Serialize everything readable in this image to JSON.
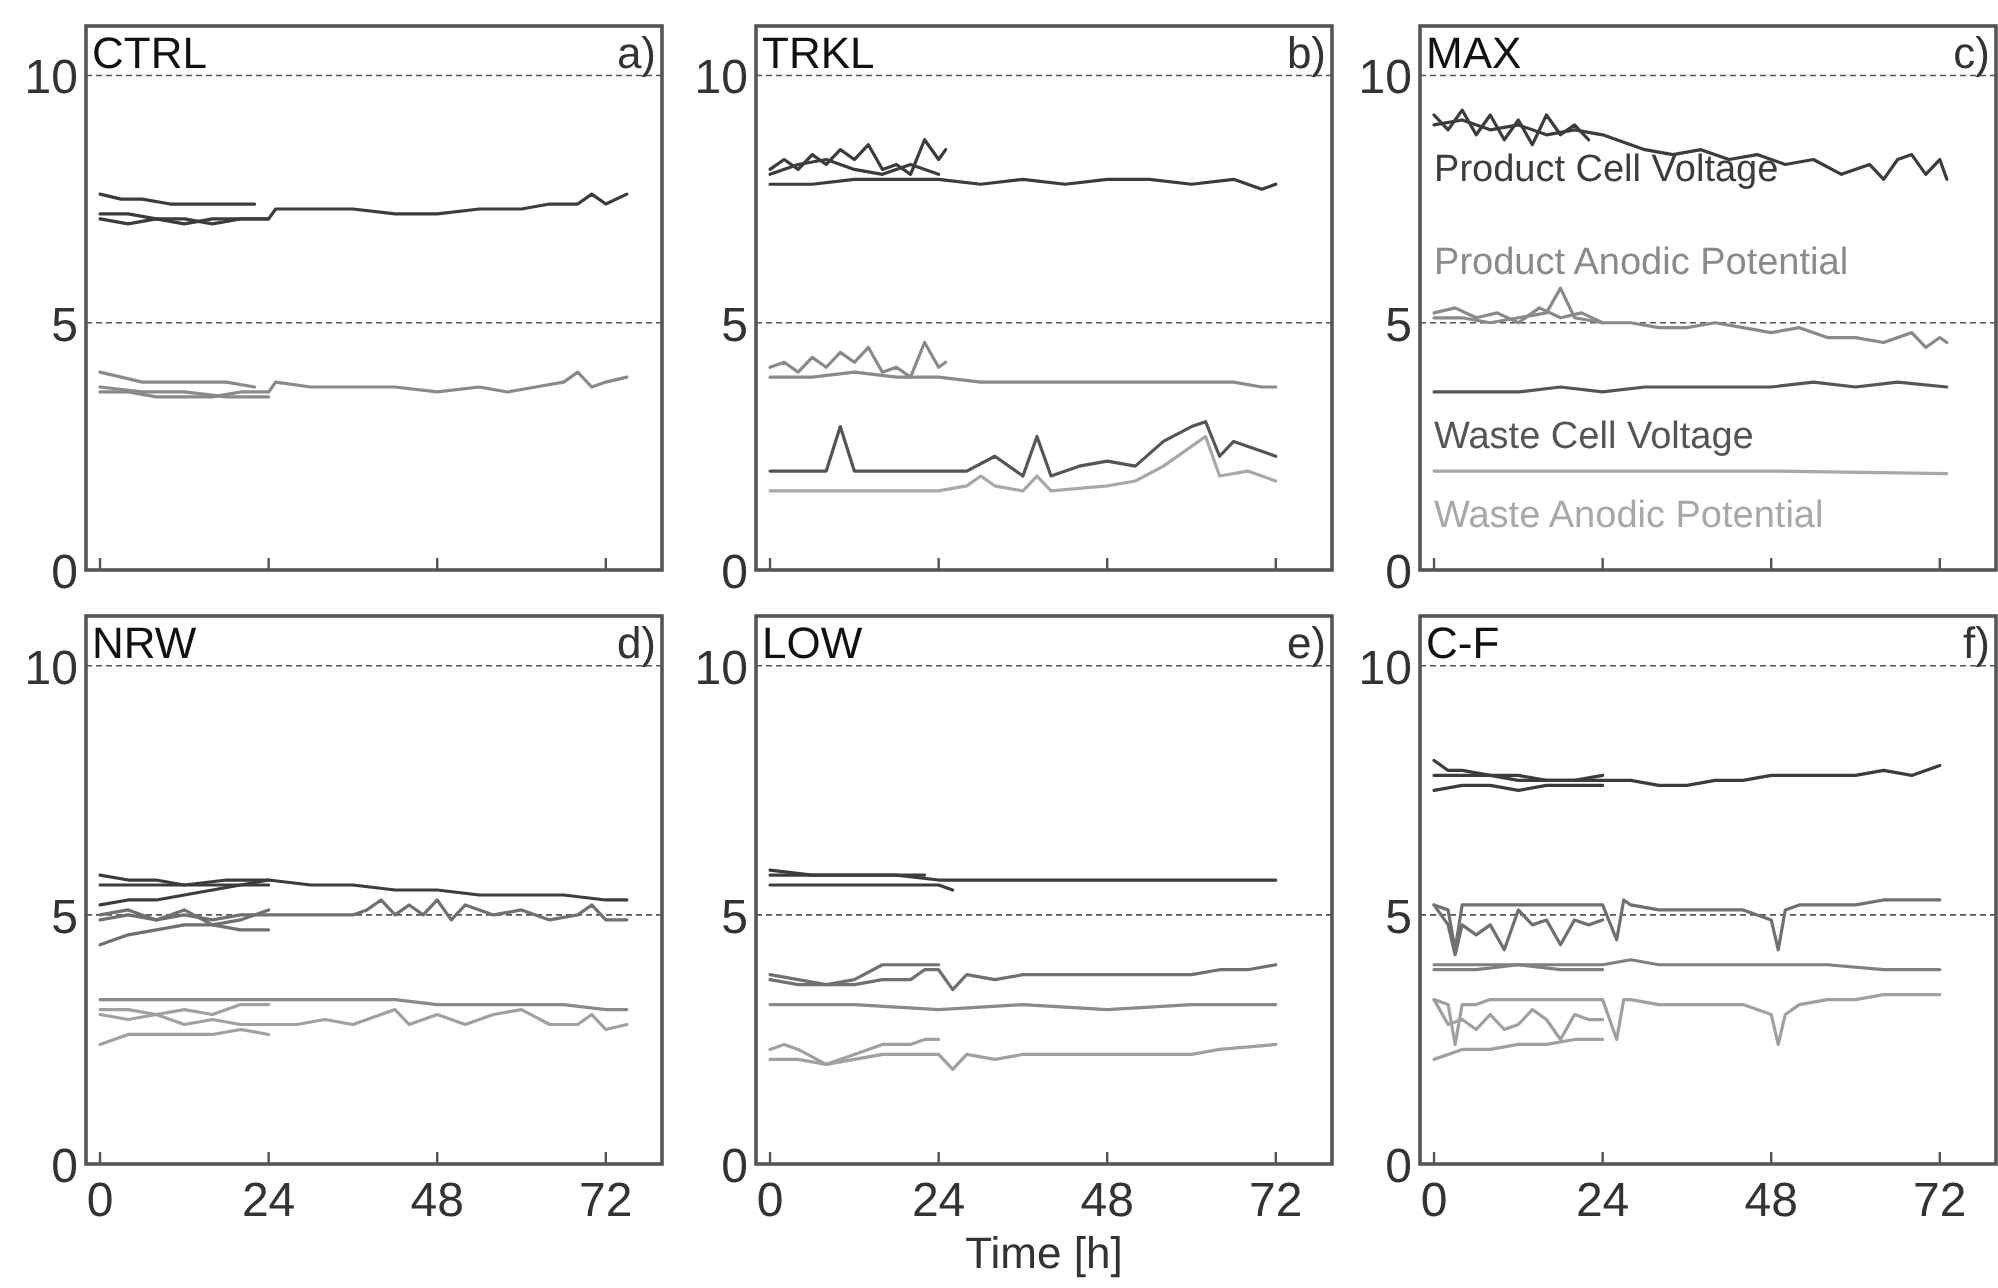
{
  "chart_data": [
    {
      "type": "line",
      "title": "CTRL",
      "annotations": [
        "a)"
      ],
      "xlim": [
        -2,
        80
      ],
      "xticks": [
        0,
        24,
        48,
        72
      ],
      "ylim": [
        0,
        11
      ],
      "yticks": [
        0,
        5,
        10
      ],
      "grid": "y",
      "tick_labels": "y",
      "series": [
        {
          "color": "#3c3c3c",
          "x": [
            0,
            4,
            8,
            12,
            16,
            20,
            24,
            25,
            30,
            36,
            42,
            48,
            54,
            60,
            64,
            68,
            70,
            72,
            75
          ],
          "values": [
            7.1,
            7.0,
            7.1,
            7.0,
            7.1,
            7.1,
            7.1,
            7.3,
            7.3,
            7.3,
            7.2,
            7.2,
            7.3,
            7.3,
            7.4,
            7.4,
            7.6,
            7.4,
            7.6
          ]
        },
        {
          "color": "#3c3c3c",
          "x": [
            0,
            3,
            6,
            10,
            14,
            18,
            22
          ],
          "values": [
            7.6,
            7.5,
            7.5,
            7.4,
            7.4,
            7.4,
            7.4
          ]
        },
        {
          "color": "#3c3c3c",
          "x": [
            0,
            4,
            8,
            12,
            16,
            20,
            24
          ],
          "values": [
            7.2,
            7.2,
            7.1,
            7.1,
            7.0,
            7.1,
            7.1
          ]
        },
        {
          "color": "#8a8a8a",
          "x": [
            0,
            4,
            8,
            12,
            16,
            20,
            24,
            25,
            30,
            36,
            42,
            48,
            54,
            58,
            62,
            66,
            68,
            70,
            72,
            75
          ],
          "values": [
            3.6,
            3.6,
            3.5,
            3.5,
            3.5,
            3.6,
            3.6,
            3.8,
            3.7,
            3.7,
            3.7,
            3.6,
            3.7,
            3.6,
            3.7,
            3.8,
            4.0,
            3.7,
            3.8,
            3.9
          ]
        },
        {
          "color": "#8a8a8a",
          "x": [
            0,
            3,
            6,
            10,
            14,
            18,
            22
          ],
          "values": [
            4.0,
            3.9,
            3.8,
            3.8,
            3.8,
            3.8,
            3.7
          ]
        },
        {
          "color": "#8a8a8a",
          "x": [
            0,
            6,
            12,
            18,
            24
          ],
          "values": [
            3.7,
            3.6,
            3.6,
            3.5,
            3.5
          ]
        }
      ]
    },
    {
      "type": "line",
      "title": "TRKL",
      "annotations": [
        "b)"
      ],
      "xlim": [
        -2,
        80
      ],
      "xticks": [
        0,
        24,
        48,
        72
      ],
      "ylim": [
        0,
        11
      ],
      "yticks": [
        0,
        5,
        10
      ],
      "grid": "y",
      "tick_labels": "y",
      "series": [
        {
          "color": "#3c3c3c",
          "x": [
            0,
            6,
            12,
            18,
            24,
            30,
            36,
            42,
            48,
            54,
            60,
            66,
            70,
            72
          ],
          "values": [
            7.8,
            7.8,
            7.9,
            7.9,
            7.9,
            7.8,
            7.9,
            7.8,
            7.9,
            7.9,
            7.8,
            7.9,
            7.7,
            7.8
          ]
        },
        {
          "color": "#3c3c3c",
          "x": [
            0,
            2,
            4,
            6,
            8,
            10,
            12,
            14,
            16,
            18,
            20,
            22,
            24,
            25
          ],
          "values": [
            8.1,
            8.3,
            8.1,
            8.4,
            8.2,
            8.5,
            8.3,
            8.6,
            8.1,
            8.2,
            8.0,
            8.7,
            8.3,
            8.5
          ]
        },
        {
          "color": "#3c3c3c",
          "x": [
            0,
            4,
            8,
            12,
            16,
            20,
            24
          ],
          "values": [
            8.0,
            8.2,
            8.3,
            8.1,
            8.0,
            8.2,
            8.0
          ]
        },
        {
          "color": "#8a8a8a",
          "x": [
            0,
            6,
            12,
            18,
            24,
            30,
            36,
            42,
            48,
            54,
            60,
            66,
            70,
            72
          ],
          "values": [
            3.9,
            3.9,
            4.0,
            3.9,
            3.9,
            3.8,
            3.8,
            3.8,
            3.8,
            3.8,
            3.8,
            3.8,
            3.7,
            3.7
          ]
        },
        {
          "color": "#8a8a8a",
          "x": [
            0,
            2,
            4,
            6,
            8,
            10,
            12,
            14,
            16,
            18,
            20,
            22,
            24,
            25
          ],
          "values": [
            4.1,
            4.2,
            4.0,
            4.3,
            4.1,
            4.4,
            4.2,
            4.5,
            4.0,
            4.1,
            3.9,
            4.6,
            4.1,
            4.2
          ]
        },
        {
          "color": "#555555",
          "x": [
            0,
            2,
            4,
            8,
            10,
            12,
            16,
            20,
            24,
            28,
            32,
            36,
            38,
            40,
            44,
            48,
            52,
            56,
            60,
            62,
            64,
            66,
            70,
            72
          ],
          "values": [
            2.0,
            2.0,
            2.0,
            2.0,
            2.9,
            2.0,
            2.0,
            2.0,
            2.0,
            2.0,
            2.3,
            1.9,
            2.7,
            1.9,
            2.1,
            2.2,
            2.1,
            2.6,
            2.9,
            3.0,
            2.3,
            2.6,
            2.4,
            2.3
          ]
        },
        {
          "color": "#a8a8a8",
          "x": [
            0,
            4,
            8,
            12,
            16,
            20,
            24,
            28,
            30,
            32,
            36,
            38,
            40,
            48,
            52,
            56,
            60,
            62,
            64,
            68,
            72
          ],
          "values": [
            1.6,
            1.6,
            1.6,
            1.6,
            1.6,
            1.6,
            1.6,
            1.7,
            1.9,
            1.7,
            1.6,
            1.9,
            1.6,
            1.7,
            1.8,
            2.1,
            2.5,
            2.7,
            1.9,
            2.0,
            1.8
          ]
        }
      ]
    },
    {
      "type": "line",
      "title": "MAX",
      "annotations": [
        "c)"
      ],
      "xlim": [
        -2,
        80
      ],
      "xticks": [
        0,
        24,
        48,
        72
      ],
      "ylim": [
        0,
        11
      ],
      "yticks": [
        0,
        5,
        10
      ],
      "grid": "y",
      "tick_labels": "y",
      "series": [
        {
          "name": "Product Cell Voltage",
          "color": "#3c3c3c",
          "x": [
            0,
            4,
            8,
            12,
            16,
            20,
            24,
            26,
            30,
            34,
            38,
            42,
            46,
            50,
            54,
            58,
            62,
            64,
            66,
            68,
            70,
            72,
            73
          ],
          "values": [
            9.0,
            9.1,
            8.9,
            9.0,
            8.8,
            8.9,
            8.8,
            8.7,
            8.5,
            8.4,
            8.5,
            8.3,
            8.4,
            8.2,
            8.3,
            8.0,
            8.2,
            7.9,
            8.3,
            8.4,
            8.0,
            8.3,
            7.9
          ]
        },
        {
          "name": "Product Anodic Potential",
          "color": "#8a8a8a",
          "x": [
            0,
            4,
            8,
            12,
            16,
            18,
            20,
            24,
            28,
            32,
            36,
            40,
            44,
            48,
            52,
            56,
            60,
            64,
            68,
            70,
            72,
            73
          ],
          "values": [
            5.1,
            5.1,
            5.0,
            5.1,
            5.2,
            5.7,
            5.1,
            5.0,
            5.0,
            4.9,
            4.9,
            5.0,
            4.9,
            4.8,
            4.9,
            4.7,
            4.7,
            4.6,
            4.8,
            4.5,
            4.7,
            4.6
          ]
        },
        {
          "name": "Waste Cell Voltage",
          "color": "#555555",
          "x": [
            0,
            6,
            12,
            18,
            24,
            30,
            36,
            42,
            48,
            54,
            60,
            66,
            73
          ],
          "values": [
            3.6,
            3.6,
            3.6,
            3.7,
            3.6,
            3.7,
            3.7,
            3.7,
            3.7,
            3.8,
            3.7,
            3.8,
            3.7
          ]
        },
        {
          "name": "Waste Anodic Potential",
          "color": "#a8a8a8",
          "x": [
            0,
            24,
            48,
            73
          ],
          "values": [
            2.0,
            2.0,
            2.0,
            1.95
          ]
        },
        {
          "color": "#3c3c3c",
          "x": [
            0,
            2,
            4,
            6,
            8,
            10,
            12,
            14,
            16,
            18,
            20,
            22
          ],
          "values": [
            9.2,
            8.9,
            9.3,
            8.8,
            9.2,
            8.7,
            9.1,
            8.6,
            9.2,
            8.8,
            9.0,
            8.7
          ]
        },
        {
          "color": "#8a8a8a",
          "x": [
            0,
            3,
            6,
            9,
            12,
            15,
            18,
            21,
            24
          ],
          "values": [
            5.2,
            5.3,
            5.1,
            5.2,
            5.0,
            5.3,
            5.1,
            5.2,
            5.0
          ]
        }
      ]
    },
    {
      "type": "line",
      "title": "NRW",
      "annotations": [
        "d)"
      ],
      "xlim": [
        -2,
        80
      ],
      "xticks": [
        0,
        24,
        48,
        72
      ],
      "ylim": [
        0,
        11
      ],
      "yticks": [
        0,
        5,
        10
      ],
      "grid": "y",
      "series": [
        {
          "color": "#3c3c3c",
          "x": [
            0,
            6,
            12,
            18,
            24,
            30,
            36,
            42,
            48,
            54,
            60,
            66,
            72,
            75
          ],
          "values": [
            5.6,
            5.6,
            5.6,
            5.7,
            5.7,
            5.6,
            5.6,
            5.5,
            5.5,
            5.4,
            5.4,
            5.4,
            5.3,
            5.3
          ]
        },
        {
          "color": "#3c3c3c",
          "x": [
            0,
            4,
            8,
            12,
            16,
            20,
            24
          ],
          "values": [
            5.8,
            5.7,
            5.7,
            5.6,
            5.6,
            5.6,
            5.7
          ]
        },
        {
          "color": "#3c3c3c",
          "x": [
            0,
            4,
            8,
            12,
            16,
            20,
            24
          ],
          "values": [
            5.2,
            5.3,
            5.3,
            5.4,
            5.5,
            5.6,
            5.6
          ]
        },
        {
          "color": "#707070",
          "x": [
            0,
            4,
            8,
            12,
            16,
            20,
            24,
            28,
            32,
            36,
            38,
            40,
            42,
            44,
            46,
            48,
            50,
            52,
            56,
            60,
            64,
            68,
            70,
            72,
            75
          ],
          "values": [
            4.9,
            5.0,
            4.9,
            5.0,
            4.9,
            5.0,
            5.0,
            5.0,
            5.0,
            5.0,
            5.1,
            5.3,
            5.0,
            5.2,
            5.0,
            5.3,
            4.9,
            5.2,
            5.0,
            5.1,
            4.9,
            5.0,
            5.2,
            4.9,
            4.9
          ]
        },
        {
          "color": "#707070",
          "x": [
            0,
            4,
            8,
            12,
            16,
            20,
            24
          ],
          "values": [
            4.4,
            4.6,
            4.7,
            4.8,
            4.8,
            4.7,
            4.7
          ]
        },
        {
          "color": "#707070",
          "x": [
            0,
            4,
            8,
            12,
            16,
            20,
            24
          ],
          "values": [
            5.0,
            5.1,
            4.9,
            5.1,
            4.8,
            4.9,
            5.1
          ]
        },
        {
          "color": "#8a8a8a",
          "x": [
            0,
            6,
            12,
            18,
            24,
            30,
            36,
            42,
            48,
            54,
            60,
            66,
            72,
            75
          ],
          "values": [
            3.3,
            3.3,
            3.3,
            3.3,
            3.3,
            3.3,
            3.3,
            3.3,
            3.2,
            3.2,
            3.2,
            3.2,
            3.1,
            3.1
          ]
        },
        {
          "color": "#a0a0a0",
          "x": [
            0,
            4,
            8,
            12,
            16,
            20,
            24,
            28,
            32,
            36,
            40,
            42,
            44,
            48,
            52,
            56,
            60,
            64,
            68,
            70,
            72,
            75
          ],
          "values": [
            3.0,
            2.9,
            3.0,
            2.8,
            2.9,
            2.8,
            2.8,
            2.8,
            2.9,
            2.8,
            3.0,
            3.1,
            2.8,
            3.0,
            2.8,
            3.0,
            3.1,
            2.8,
            2.8,
            3.0,
            2.7,
            2.8
          ]
        },
        {
          "color": "#a0a0a0",
          "x": [
            0,
            4,
            8,
            12,
            16,
            20,
            24
          ],
          "values": [
            2.4,
            2.6,
            2.6,
            2.6,
            2.6,
            2.7,
            2.6
          ]
        },
        {
          "color": "#a0a0a0",
          "x": [
            0,
            4,
            8,
            12,
            16,
            20,
            24
          ],
          "values": [
            3.1,
            3.1,
            3.0,
            3.1,
            3.0,
            3.2,
            3.2
          ]
        }
      ]
    },
    {
      "type": "line",
      "title": "LOW",
      "annotations": [
        "e)"
      ],
      "xlabel": "Time [h]",
      "xlim": [
        -2,
        80
      ],
      "xticks": [
        0,
        24,
        48,
        72
      ],
      "ylim": [
        0,
        11
      ],
      "yticks": [
        0,
        5,
        10
      ],
      "grid": "y",
      "series": [
        {
          "color": "#3c3c3c",
          "x": [
            0,
            6,
            12,
            18,
            24,
            30,
            36,
            42,
            48,
            54,
            60,
            66,
            72
          ],
          "values": [
            5.8,
            5.8,
            5.8,
            5.8,
            5.7,
            5.7,
            5.7,
            5.7,
            5.7,
            5.7,
            5.7,
            5.7,
            5.7
          ]
        },
        {
          "color": "#3c3c3c",
          "x": [
            0,
            6,
            12,
            18,
            22
          ],
          "values": [
            5.9,
            5.8,
            5.8,
            5.8,
            5.8
          ]
        },
        {
          "color": "#3c3c3c",
          "x": [
            0,
            6,
            12,
            18,
            24,
            26
          ],
          "values": [
            5.6,
            5.6,
            5.6,
            5.6,
            5.6,
            5.5
          ]
        },
        {
          "color": "#707070",
          "x": [
            0,
            4,
            8,
            12,
            16,
            18,
            20,
            22,
            24,
            26,
            28,
            32,
            36,
            40,
            44,
            48,
            52,
            56,
            60,
            64,
            68,
            72
          ],
          "values": [
            3.7,
            3.6,
            3.6,
            3.6,
            3.7,
            3.7,
            3.7,
            3.9,
            3.9,
            3.5,
            3.8,
            3.7,
            3.8,
            3.8,
            3.8,
            3.8,
            3.8,
            3.8,
            3.8,
            3.9,
            3.9,
            4.0
          ]
        },
        {
          "color": "#707070",
          "x": [
            0,
            4,
            8,
            12,
            16,
            18,
            22,
            24
          ],
          "values": [
            3.8,
            3.7,
            3.6,
            3.7,
            4.0,
            4.0,
            4.0,
            4.0
          ]
        },
        {
          "color": "#8a8a8a",
          "x": [
            0,
            12,
            24,
            36,
            48,
            60,
            72
          ],
          "values": [
            3.2,
            3.2,
            3.1,
            3.2,
            3.1,
            3.2,
            3.2
          ]
        },
        {
          "color": "#a0a0a0",
          "x": [
            0,
            4,
            8,
            12,
            16,
            20,
            24,
            26,
            28,
            32,
            36,
            48,
            60,
            64,
            72
          ],
          "values": [
            2.1,
            2.1,
            2.0,
            2.1,
            2.2,
            2.2,
            2.2,
            1.9,
            2.2,
            2.1,
            2.2,
            2.2,
            2.2,
            2.3,
            2.4
          ]
        },
        {
          "color": "#a0a0a0",
          "x": [
            0,
            2,
            4,
            8,
            12,
            16,
            20,
            22,
            24
          ],
          "values": [
            2.3,
            2.4,
            2.3,
            2.0,
            2.2,
            2.4,
            2.4,
            2.5,
            2.5
          ]
        }
      ]
    },
    {
      "type": "line",
      "title": "C-F",
      "annotations": [
        "f)"
      ],
      "xlim": [
        -2,
        80
      ],
      "xticks": [
        0,
        24,
        48,
        72
      ],
      "ylim": [
        0,
        11
      ],
      "yticks": [
        0,
        5,
        10
      ],
      "grid": "y",
      "series": [
        {
          "color": "#3c3c3c",
          "x": [
            0,
            4,
            8,
            12,
            16,
            20,
            24,
            28,
            32,
            36,
            40,
            44,
            48,
            52,
            56,
            60,
            64,
            68,
            70,
            72
          ],
          "values": [
            7.8,
            7.8,
            7.8,
            7.7,
            7.7,
            7.7,
            7.7,
            7.7,
            7.6,
            7.6,
            7.7,
            7.7,
            7.8,
            7.8,
            7.8,
            7.8,
            7.9,
            7.8,
            7.9,
            8.0
          ]
        },
        {
          "color": "#3c3c3c",
          "x": [
            0,
            2,
            4,
            8,
            12,
            16,
            20,
            24
          ],
          "values": [
            8.1,
            7.9,
            7.9,
            7.8,
            7.8,
            7.7,
            7.7,
            7.8
          ]
        },
        {
          "color": "#3c3c3c",
          "x": [
            0,
            4,
            8,
            12,
            16,
            20,
            24
          ],
          "values": [
            7.5,
            7.6,
            7.6,
            7.5,
            7.6,
            7.6,
            7.6
          ]
        },
        {
          "color": "#707070",
          "x": [
            0,
            2,
            3,
            4,
            6,
            8,
            10,
            12,
            16,
            20,
            24,
            26,
            27,
            28,
            32,
            36,
            40,
            44,
            48,
            49,
            50,
            52,
            56,
            60,
            64,
            68,
            72
          ],
          "values": [
            5.2,
            5.1,
            4.3,
            5.2,
            5.2,
            5.2,
            5.2,
            5.2,
            5.2,
            5.2,
            5.2,
            4.5,
            5.3,
            5.2,
            5.1,
            5.1,
            5.1,
            5.1,
            4.9,
            4.3,
            5.1,
            5.2,
            5.2,
            5.2,
            5.3,
            5.3,
            5.3
          ]
        },
        {
          "color": "#707070",
          "x": [
            0,
            2,
            3,
            4,
            6,
            8,
            10,
            12,
            14,
            16,
            18,
            20,
            22,
            24
          ],
          "values": [
            5.2,
            4.8,
            4.2,
            4.8,
            4.6,
            4.8,
            4.3,
            5.1,
            4.8,
            4.9,
            4.4,
            4.9,
            4.8,
            4.9
          ]
        },
        {
          "color": "#808080",
          "x": [
            0,
            6,
            12,
            18,
            24,
            28,
            32,
            40,
            48,
            56,
            64,
            72
          ],
          "values": [
            4.0,
            4.0,
            4.0,
            4.0,
            4.0,
            4.1,
            4.0,
            4.0,
            4.0,
            4.0,
            3.9,
            3.9
          ]
        },
        {
          "color": "#808080",
          "x": [
            0,
            6,
            12,
            18,
            24
          ],
          "values": [
            3.9,
            3.9,
            4.0,
            3.9,
            3.9
          ]
        },
        {
          "color": "#a0a0a0",
          "x": [
            0,
            2,
            3,
            4,
            6,
            8,
            12,
            16,
            20,
            24,
            26,
            27,
            28,
            32,
            36,
            40,
            44,
            48,
            49,
            50,
            52,
            56,
            60,
            64,
            68,
            72
          ],
          "values": [
            3.3,
            3.2,
            2.4,
            3.2,
            3.2,
            3.3,
            3.3,
            3.3,
            3.3,
            3.3,
            2.5,
            3.3,
            3.3,
            3.2,
            3.2,
            3.2,
            3.2,
            3.0,
            2.4,
            3.0,
            3.2,
            3.3,
            3.3,
            3.4,
            3.4,
            3.4
          ]
        },
        {
          "color": "#a0a0a0",
          "x": [
            0,
            2,
            4,
            6,
            8,
            10,
            12,
            14,
            16,
            18,
            20,
            22,
            24
          ],
          "values": [
            3.3,
            2.8,
            2.9,
            2.7,
            3.0,
            2.7,
            2.8,
            3.1,
            2.9,
            2.5,
            3.0,
            2.9,
            2.9
          ]
        },
        {
          "color": "#a0a0a0",
          "x": [
            0,
            4,
            8,
            12,
            16,
            20,
            24
          ],
          "values": [
            2.1,
            2.3,
            2.3,
            2.4,
            2.4,
            2.5,
            2.5
          ]
        }
      ]
    }
  ]
}
